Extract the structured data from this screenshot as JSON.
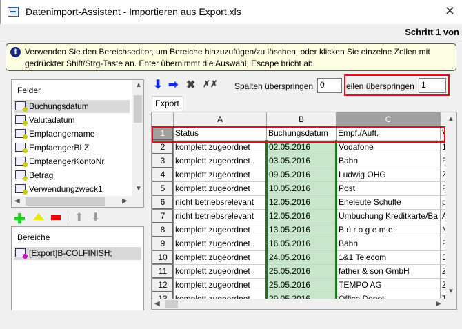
{
  "window": {
    "title": "Datenimport-Assistent -  Importieren aus  Export.xls",
    "close": "✕",
    "step": "Schritt 1 von"
  },
  "info": {
    "text": "Verwenden Sie den Bereichseditor, um Bereiche hinzuzufügen/zu löschen, oder klicken Sie einzelne Zellen mit gedrückter Shift/Strg-Taste an. Enter übernimmt die Auswahl, Escape bricht ab.",
    "icon": "i"
  },
  "felder": {
    "label": "Felder",
    "items": [
      "Buchungsdatum",
      "Valutadatum",
      "Empfaengername",
      "EmpfaengerBLZ",
      "EmpfaengerKontoNr",
      "Betrag",
      "Verwendungzweck1"
    ]
  },
  "bereiche": {
    "label": "Bereiche",
    "items": [
      "[Export]B-COLFINISH;"
    ]
  },
  "toolbar": {
    "spalten_label": "Spalten überspringen",
    "spalten_value": "0",
    "zeilen_label": "eilen überspringen",
    "zeilen_value": "1"
  },
  "tab": "Export",
  "grid": {
    "columns": [
      "A",
      "B",
      "C"
    ],
    "rows": [
      [
        "1",
        "Status",
        "Buchungsdatum",
        "Empf./Auft.",
        "V"
      ],
      [
        "2",
        "komplett zugeordnet",
        "02.05.2016",
        "Vodafone",
        "1"
      ],
      [
        "3",
        "komplett zugeordnet",
        "03.05.2016",
        "Bahn",
        "F"
      ],
      [
        "4",
        "komplett zugeordnet",
        "09.05.2016",
        "Ludwig OHG",
        "Z"
      ],
      [
        "5",
        "komplett zugeordnet",
        "10.05.2016",
        "Post",
        "F"
      ],
      [
        "6",
        "nicht betriebsrelevant",
        "12.05.2016",
        "Eheleute Schulte",
        "p"
      ],
      [
        "7",
        "nicht betriebsrelevant",
        "12.05.2016",
        "Umbuchung Kreditkarte/Ba",
        "A"
      ],
      [
        "8",
        "komplett zugeordnet",
        "13.05.2016",
        "B ü r o g e m e",
        "M"
      ],
      [
        "9",
        "komplett zugeordnet",
        "16.05.2016",
        "Bahn",
        "F"
      ],
      [
        "10",
        "komplett zugeordnet",
        "24.05.2016",
        "1&1 Telecom",
        "D"
      ],
      [
        "11",
        "komplett zugeordnet",
        "25.05.2016",
        "father & son GmbH",
        "Z"
      ],
      [
        "12",
        "komplett zugeordnet",
        "25.05.2016",
        "TEMPO AG",
        "Z"
      ],
      [
        "13",
        "komplett zugeordnet",
        "29.05.2016",
        "Office Depot",
        "T"
      ]
    ]
  },
  "colors": {
    "highlight_red": "#e0101a",
    "selected_column_green": "#c8e6c9"
  }
}
